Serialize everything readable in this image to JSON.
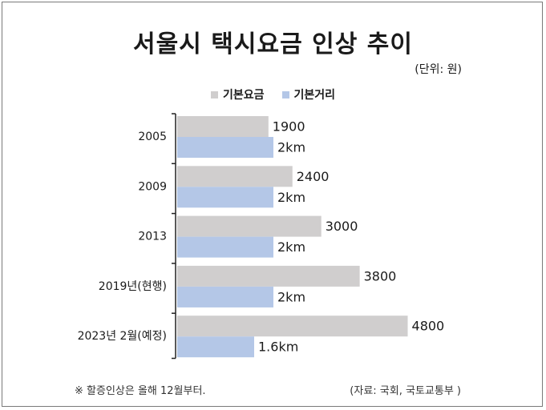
{
  "chart_data": {
    "type": "bar",
    "orientation": "horizontal",
    "title": "서울시 택시요금 인상 추이",
    "unit_note": "(단위: 원)",
    "categories": [
      "2005",
      "2009",
      "2013",
      "2019년(현행)",
      "2023년 2월(예정)"
    ],
    "series": [
      {
        "name": "기본요금",
        "color": "#d0cece",
        "values": [
          1900,
          2400,
          3000,
          3800,
          4800
        ],
        "labels": [
          "1900",
          "2400",
          "3000",
          "3800",
          "4800"
        ]
      },
      {
        "name": "기본거리",
        "color": "#b4c7e7",
        "values": [
          2,
          2,
          2,
          2,
          1.6
        ],
        "labels": [
          "2km",
          "2km",
          "2km",
          "2km",
          "1.6km"
        ]
      }
    ],
    "xlim": [
      0,
      5350
    ],
    "grid": false,
    "legend_position": "top-center"
  },
  "footnote": "※ 할증인상은 올해 12월부터.",
  "source": "(자료: 국회, 국토교통부 )"
}
